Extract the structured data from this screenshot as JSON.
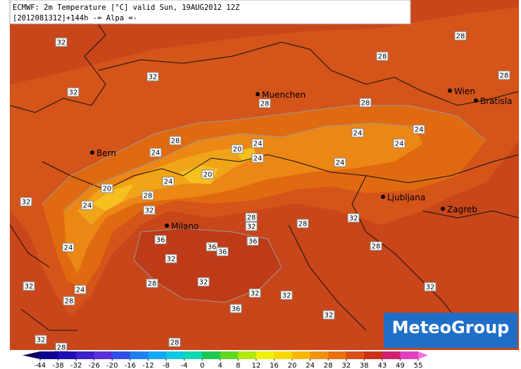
{
  "header": {
    "title": "ECMWF: 2m Temperature [°C] valid Sun, 19AUG2012 12Z",
    "subtitle": "[2012081312]+144h -= Alpa =-"
  },
  "cities": [
    "Muenchen",
    "Wien",
    "Bratisla",
    "Bern",
    "Milano",
    "Ljubljana",
    "Zagreb"
  ],
  "contour_labels": [
    "32",
    "28",
    "28",
    "32",
    "28",
    "32",
    "28",
    "28",
    "24",
    "24",
    "24",
    "28",
    "20",
    "24",
    "24",
    "24",
    "24",
    "20",
    "24",
    "20",
    "28",
    "32",
    "24",
    "32",
    "28",
    "32",
    "28",
    "32",
    "36",
    "36",
    "36",
    "36",
    "28",
    "24",
    "32",
    "28",
    "32",
    "32",
    "24",
    "32",
    "28",
    "32",
    "32",
    "36",
    "32",
    "32",
    "28",
    "28"
  ],
  "legend": {
    "ticks": [
      -44,
      -38,
      -32,
      -26,
      -20,
      -16,
      -12,
      -8,
      -4,
      0,
      4,
      8,
      12,
      16,
      20,
      24,
      28,
      32,
      38,
      43,
      49,
      55
    ],
    "colors": [
      "#100090",
      "#2010b0",
      "#3c20c8",
      "#5a30d8",
      "#3050e8",
      "#2080f0",
      "#10a8f0",
      "#10c8e0",
      "#10d8b0",
      "#20c850",
      "#60d820",
      "#b0e810",
      "#f0f000",
      "#f8d800",
      "#f8b800",
      "#f09010",
      "#e87010",
      "#d85018",
      "#c83018",
      "#d02070",
      "#e040c0"
    ],
    "low_color": "#0a0060",
    "high_color": "#f070e0"
  },
  "logo": "MeteoGroup"
}
